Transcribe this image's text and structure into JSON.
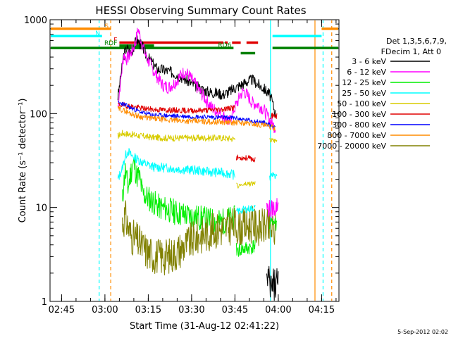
{
  "chart_data": {
    "type": "line",
    "title": "HESSI Observing Summary Count Rates",
    "xlabel": "Start Time (31-Aug-12 02:41:22)",
    "ylabel": "Count Rate (s⁻¹ detector⁻¹)",
    "yscale": "log",
    "ylim": [
      1,
      1000
    ],
    "xlim": [
      "02:41",
      "04:21"
    ],
    "grid": false,
    "x_ticks": [
      {
        "label": "02:45",
        "t": 4
      },
      {
        "label": "03:00",
        "t": 19
      },
      {
        "label": "03:15",
        "t": 34
      },
      {
        "label": "03:30",
        "t": 49
      },
      {
        "label": "03:45",
        "t": 64
      },
      {
        "label": "04:00",
        "t": 79
      },
      {
        "label": "04:15",
        "t": 94
      }
    ],
    "y_ticks": [
      {
        "label": "1",
        "v": 1
      },
      {
        "label": "10",
        "v": 10
      },
      {
        "label": "100",
        "v": 100
      },
      {
        "label": "1000",
        "v": 1000
      }
    ],
    "legend": {
      "placement": "right",
      "header": [
        "Det 1,3,5,6,7,9,",
        "FDecim 1, Att 0"
      ],
      "entries": [
        {
          "name": "3 - 6 keV",
          "color": "#000000"
        },
        {
          "name": "6 - 12 keV",
          "color": "#ff00ff"
        },
        {
          "name": "12 - 25 keV",
          "color": "#00ee00"
        },
        {
          "name": "25 - 50 keV",
          "color": "#00ffff"
        },
        {
          "name": "50 - 100 keV",
          "color": "#d8cc00"
        },
        {
          "name": "100 - 300 keV",
          "color": "#e00000"
        },
        {
          "name": "300 - 800 keV",
          "color": "#0000ff"
        },
        {
          "name": "800 - 7000 keV",
          "color": "#ff8c00"
        },
        {
          "name": "7000 - 20000 keV",
          "color": "#808000"
        }
      ]
    },
    "series": [
      {
        "name": "3 - 6 keV",
        "color": "#000000",
        "noise": 0.06,
        "seed": 3,
        "points": [
          [
            23.5,
            150
          ],
          [
            24.5,
            250
          ],
          [
            25.5,
            420
          ],
          [
            26.5,
            500
          ],
          [
            28,
            440
          ],
          [
            29,
            520
          ],
          [
            30,
            620
          ],
          [
            31,
            560
          ],
          [
            32,
            520
          ],
          [
            33,
            430
          ],
          [
            35,
            360
          ],
          [
            37,
            300
          ],
          [
            40,
            290
          ],
          [
            43,
            270
          ],
          [
            46,
            240
          ],
          [
            49,
            210
          ],
          [
            52,
            185
          ],
          [
            55,
            170
          ],
          [
            58,
            165
          ],
          [
            60,
            160
          ],
          [
            62,
            172
          ],
          [
            65,
            195
          ],
          [
            68,
            218
          ],
          [
            70,
            230
          ],
          [
            72,
            205
          ],
          [
            74,
            185
          ],
          [
            76,
            160
          ],
          [
            77,
            130
          ],
          [
            78,
            100
          ]
        ]
      },
      {
        "name": "6 - 12 keV",
        "color": "#ff00ff",
        "noise": 0.07,
        "seed": 7,
        "points": [
          [
            23.5,
            120
          ],
          [
            24.5,
            230
          ],
          [
            25.5,
            430
          ],
          [
            26.5,
            380
          ],
          [
            28,
            440
          ],
          [
            29.5,
            560
          ],
          [
            30.5,
            800
          ],
          [
            31.5,
            600
          ],
          [
            33,
            420
          ],
          [
            35,
            320
          ],
          [
            37,
            250
          ],
          [
            39,
            200
          ],
          [
            41,
            190
          ],
          [
            43,
            210
          ],
          [
            45,
            250
          ],
          [
            46.5,
            280
          ],
          [
            48,
            255
          ],
          [
            50,
            210
          ],
          [
            52,
            170
          ],
          [
            54,
            140
          ],
          [
            56,
            115
          ],
          [
            58,
            105
          ],
          [
            60,
            95
          ],
          [
            61,
            86
          ],
          [
            62,
            80
          ],
          [
            63,
            100
          ],
          [
            65,
            135
          ],
          [
            66,
            160
          ],
          [
            67,
            175
          ],
          [
            68,
            160
          ],
          [
            70,
            130
          ],
          [
            72,
            125
          ],
          [
            74,
            110
          ],
          [
            76,
            85
          ],
          [
            78,
            70
          ]
        ]
      },
      {
        "name": "12 - 25 keV",
        "color": "#00ee00",
        "noise": 0.14,
        "seed": 11,
        "points": [
          [
            25,
            12
          ],
          [
            26,
            25
          ],
          [
            27,
            16
          ],
          [
            28,
            24
          ],
          [
            29,
            30
          ],
          [
            30,
            22
          ],
          [
            31,
            21
          ],
          [
            32,
            14
          ],
          [
            35,
            12
          ],
          [
            38,
            10
          ],
          [
            41,
            9.5
          ],
          [
            44,
            8.8
          ],
          [
            47,
            8.3
          ],
          [
            50,
            8
          ],
          [
            53,
            7.6
          ],
          [
            56,
            7.2
          ],
          [
            59,
            7
          ],
          [
            62,
            7.5
          ],
          [
            64,
            7.6
          ]
        ]
      },
      {
        "name": "25 - 50 keV",
        "color": "#00ffff",
        "noise": 0.05,
        "seed": 13,
        "points": [
          [
            23.5,
            20
          ],
          [
            25,
            26
          ],
          [
            26,
            35
          ],
          [
            27,
            40
          ],
          [
            28,
            36
          ],
          [
            30,
            33
          ],
          [
            33,
            29
          ],
          [
            36,
            27
          ],
          [
            40,
            26.5
          ],
          [
            45,
            25.5
          ],
          [
            50,
            25
          ],
          [
            55,
            24
          ],
          [
            60,
            23.5
          ],
          [
            63,
            22.5
          ],
          [
            64,
            22
          ]
        ]
      },
      {
        "name": "50 - 100 keV",
        "color": "#d8cc00",
        "noise": 0.035,
        "seed": 17,
        "points": [
          [
            23.5,
            58
          ],
          [
            25,
            62
          ],
          [
            28,
            60
          ],
          [
            31,
            58
          ],
          [
            35,
            56
          ],
          [
            40,
            55
          ],
          [
            45,
            55
          ],
          [
            50,
            55
          ],
          [
            55,
            55
          ],
          [
            60,
            55
          ],
          [
            63,
            54
          ],
          [
            64,
            54
          ]
        ]
      },
      {
        "name": "100 - 300 keV",
        "color": "#e00000",
        "noise": 0.03,
        "seed": 19,
        "points": [
          [
            23.5,
            125
          ],
          [
            26,
            122
          ],
          [
            29,
            118
          ],
          [
            32,
            114
          ],
          [
            35,
            111
          ],
          [
            40,
            109
          ],
          [
            45,
            108
          ],
          [
            50,
            108
          ],
          [
            55,
            109
          ],
          [
            60,
            112
          ],
          [
            64,
            116
          ]
        ]
      },
      {
        "name": "300 - 800 keV",
        "color": "#0000ff",
        "noise": 0.025,
        "seed": 23,
        "points": [
          [
            23.5,
            130
          ],
          [
            25,
            128
          ],
          [
            28,
            115
          ],
          [
            30,
            108
          ],
          [
            33,
            100
          ],
          [
            36,
            97
          ],
          [
            40,
            95
          ],
          [
            45,
            94
          ],
          [
            50,
            93
          ],
          [
            55,
            92
          ],
          [
            60,
            91
          ],
          [
            64,
            90
          ],
          [
            66,
            87
          ],
          [
            70,
            84
          ],
          [
            74,
            80
          ],
          [
            76,
            76
          ],
          [
            78,
            73
          ]
        ]
      },
      {
        "name": "800 - 7000 keV",
        "color": "#ff8c00",
        "noise": 0.03,
        "seed": 29,
        "points": [
          [
            23.5,
            112
          ],
          [
            25,
            110
          ],
          [
            28,
            100
          ],
          [
            31,
            93
          ],
          [
            35,
            89
          ],
          [
            40,
            86
          ],
          [
            45,
            84
          ],
          [
            50,
            83
          ],
          [
            55,
            82
          ],
          [
            60,
            81
          ],
          [
            64,
            80
          ],
          [
            66,
            80
          ],
          [
            70,
            78
          ],
          [
            74,
            75
          ],
          [
            76,
            72
          ],
          [
            78,
            70
          ]
        ]
      },
      {
        "name": "7000 - 20000 keV",
        "color": "#808000",
        "noise": 0.2,
        "seed": 31,
        "points": [
          [
            25,
            7
          ],
          [
            26,
            8
          ],
          [
            28,
            5
          ],
          [
            30,
            4.5
          ],
          [
            32,
            3.8
          ],
          [
            34,
            3.3
          ],
          [
            36,
            3.1
          ],
          [
            38,
            3.0
          ],
          [
            40,
            3.0
          ],
          [
            42,
            3.1
          ],
          [
            44,
            3.4
          ],
          [
            47,
            4.0
          ],
          [
            50,
            4.7
          ],
          [
            54,
            5.3
          ],
          [
            58,
            5.8
          ],
          [
            62,
            6.2
          ],
          [
            64,
            6.5
          ],
          [
            66,
            5.9
          ],
          [
            68,
            6.4
          ],
          [
            70,
            6.6
          ],
          [
            72,
            6.1
          ],
          [
            74,
            6.3
          ],
          [
            76,
            5.9
          ],
          [
            78,
            5.6
          ]
        ]
      }
    ],
    "late_segments": [
      {
        "name": "12 - 25 keV",
        "color": "#00ee00",
        "noise": 0.08,
        "seed": 41,
        "points": [
          [
            64.5,
            3.5
          ],
          [
            67,
            3.6
          ],
          [
            70,
            3.8
          ],
          [
            71,
            4
          ]
        ]
      },
      {
        "name": "25 - 50 keV",
        "color": "#00ffff",
        "noise": 0.04,
        "seed": 43,
        "points": [
          [
            64.5,
            9
          ],
          [
            67,
            9.5
          ],
          [
            70,
            9.8
          ],
          [
            71,
            10
          ]
        ]
      },
      {
        "name": "50 - 100 keV",
        "color": "#d8cc00",
        "noise": 0.03,
        "seed": 47,
        "points": [
          [
            64.5,
            17
          ],
          [
            67,
            17.5
          ],
          [
            70,
            18
          ],
          [
            71,
            18
          ]
        ]
      },
      {
        "name": "100 - 300 keV",
        "color": "#e00000",
        "noise": 0.03,
        "seed": 53,
        "points": [
          [
            64.5,
            34
          ],
          [
            67,
            34
          ],
          [
            70,
            33
          ],
          [
            71,
            32
          ]
        ]
      },
      {
        "name": "12 - 25 keV",
        "color": "#00ee00",
        "noise": 0.08,
        "seed": 59,
        "points": [
          [
            76,
            7
          ],
          [
            77.5,
            6.8
          ],
          [
            78.5,
            6.6
          ]
        ]
      },
      {
        "name": "25 - 50 keV",
        "color": "#00ffff",
        "noise": 0.04,
        "seed": 61,
        "points": [
          [
            76,
            21
          ],
          [
            77.5,
            22
          ],
          [
            78.5,
            22
          ]
        ]
      },
      {
        "name": "50 - 100 keV",
        "color": "#d8cc00",
        "noise": 0.03,
        "seed": 67,
        "points": [
          [
            76,
            52
          ],
          [
            77.5,
            52
          ],
          [
            78.5,
            52
          ]
        ]
      },
      {
        "name": "100 - 300 keV",
        "color": "#e00000",
        "noise": 0.03,
        "seed": 71,
        "points": [
          [
            76,
            95
          ],
          [
            77.5,
            95
          ],
          [
            78.5,
            94
          ]
        ]
      },
      {
        "name": "3 - 6 keV",
        "color": "#000000",
        "noise": 0.2,
        "seed": 73,
        "points": [
          [
            75,
            1.6
          ],
          [
            76.5,
            1.4
          ],
          [
            78,
            1.6
          ],
          [
            79,
            1.5
          ]
        ]
      },
      {
        "name": "6 - 12 keV",
        "color": "#ff00ff",
        "noise": 0.1,
        "seed": 79,
        "points": [
          [
            75,
            10
          ],
          [
            76.5,
            9.5
          ],
          [
            78,
            10
          ],
          [
            79,
            11
          ]
        ]
      }
    ],
    "status_bars": [
      {
        "label": "S",
        "color": "#ff8c00",
        "v": 800,
        "segments": [
          [
            0,
            21
          ],
          [
            94,
            100
          ]
        ]
      },
      {
        "label": "N",
        "color": "#00ffff",
        "v": 670,
        "segments": [
          [
            0,
            18
          ],
          [
            77,
            94
          ]
        ]
      },
      {
        "label": "F",
        "color": "#e00000",
        "v": 570,
        "segments": [
          [
            24,
            60
          ],
          [
            60.5,
            61.5
          ],
          [
            63,
            66
          ],
          [
            68,
            72
          ]
        ]
      },
      {
        "label": "RDF",
        "color": "#008000",
        "v": 530,
        "segments": [
          [
            24,
            36
          ]
        ]
      },
      {
        "label": "RD6",
        "color": "#008000",
        "v": 500,
        "segments": [
          [
            0,
            63.5
          ],
          [
            77,
            100
          ]
        ]
      },
      {
        "label": "",
        "color": "#008000",
        "v": 440,
        "segments": [
          [
            66,
            71
          ]
        ]
      }
    ],
    "vertical_lines": [
      {
        "t": 17,
        "color": "#00ffff",
        "style": "dashed"
      },
      {
        "t": 21,
        "color": "#ff8c00",
        "style": "dashed"
      },
      {
        "t": 76.3,
        "color": "#00ffff",
        "style": "solid"
      },
      {
        "t": 91.7,
        "color": "#ff8c00",
        "style": "solid"
      },
      {
        "t": 94.5,
        "color": "#00ffff",
        "style": "dashed"
      },
      {
        "t": 97.5,
        "color": "#ff8c00",
        "style": "dashed"
      }
    ],
    "corner_stamp": "5-Sep-2012 02:02"
  }
}
